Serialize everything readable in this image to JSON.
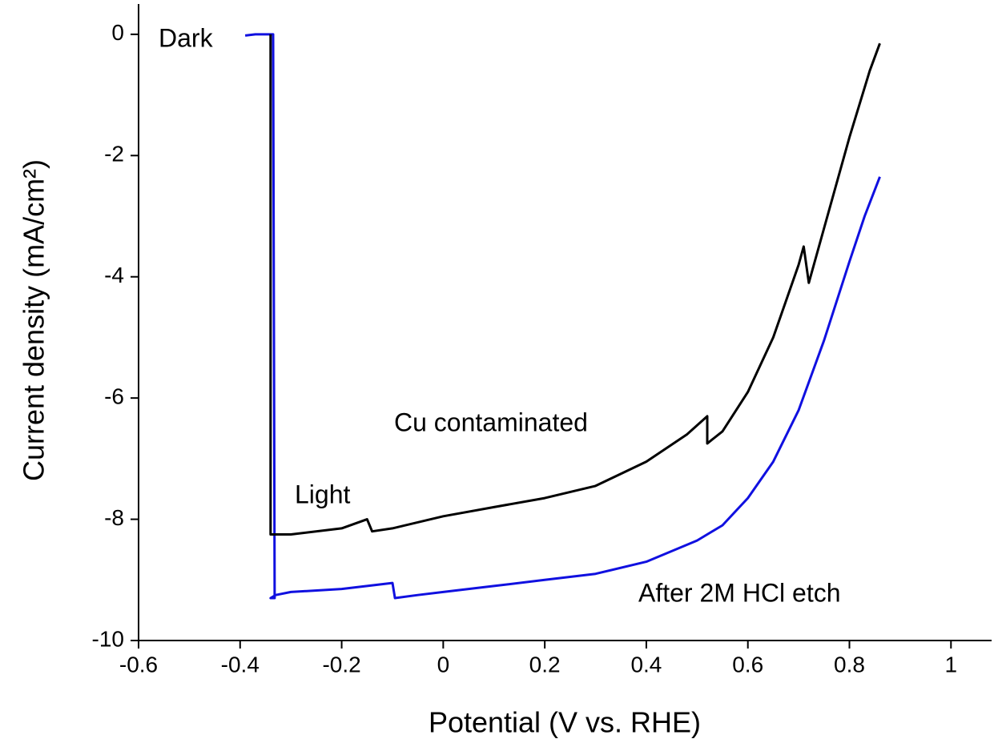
{
  "chart_data": {
    "type": "line",
    "xlabel": "Potential (V vs. RHE)",
    "ylabel": "Current density (mA/cm²)",
    "xlim": [
      -0.6,
      1.08
    ],
    "xticks": [
      -0.6,
      -0.4,
      -0.2,
      0.0,
      0.2,
      0.4,
      0.6,
      0.8,
      1.0
    ],
    "ylim": [
      -10,
      0.5
    ],
    "yticks": [
      -10,
      -8,
      -6,
      -4,
      -2,
      0
    ],
    "annotations": [
      "Dark",
      "Light"
    ],
    "series": [
      {
        "name": "After 2M HCl etch",
        "color": "#1010e0",
        "x": [
          -0.39,
          -0.37,
          -0.335,
          -0.332,
          -0.34,
          -0.33,
          -0.3,
          -0.2,
          -0.1,
          -0.095,
          -0.05,
          0.0,
          0.1,
          0.2,
          0.3,
          0.4,
          0.5,
          0.55,
          0.6,
          0.65,
          0.7,
          0.75,
          0.8,
          0.83,
          0.86
        ],
        "values": [
          -0.02,
          0,
          0,
          -9.3,
          -9.3,
          -9.25,
          -9.2,
          -9.15,
          -9.05,
          -9.3,
          -9.25,
          -9.2,
          -9.1,
          -9.0,
          -8.9,
          -8.7,
          -8.35,
          -8.1,
          -7.65,
          -7.05,
          -6.2,
          -5.05,
          -3.75,
          -3.0,
          -2.35
        ]
      },
      {
        "name": "Cu contaminated",
        "color": "#000000",
        "x": [
          -0.34,
          -0.34,
          -0.3,
          -0.2,
          -0.15,
          -0.14,
          -0.1,
          0.0,
          0.1,
          0.2,
          0.3,
          0.4,
          0.48,
          0.52,
          0.52,
          0.55,
          0.6,
          0.65,
          0.7,
          0.71,
          0.72,
          0.75,
          0.8,
          0.84,
          0.86
        ],
        "values": [
          0,
          -8.25,
          -8.25,
          -8.15,
          -8.0,
          -8.2,
          -8.15,
          -7.95,
          -7.8,
          -7.65,
          -7.45,
          -7.05,
          -6.6,
          -6.3,
          -6.75,
          -6.55,
          -5.9,
          -5.0,
          -3.8,
          -3.5,
          -4.1,
          -3.2,
          -1.7,
          -0.6,
          -0.15
        ]
      }
    ]
  }
}
